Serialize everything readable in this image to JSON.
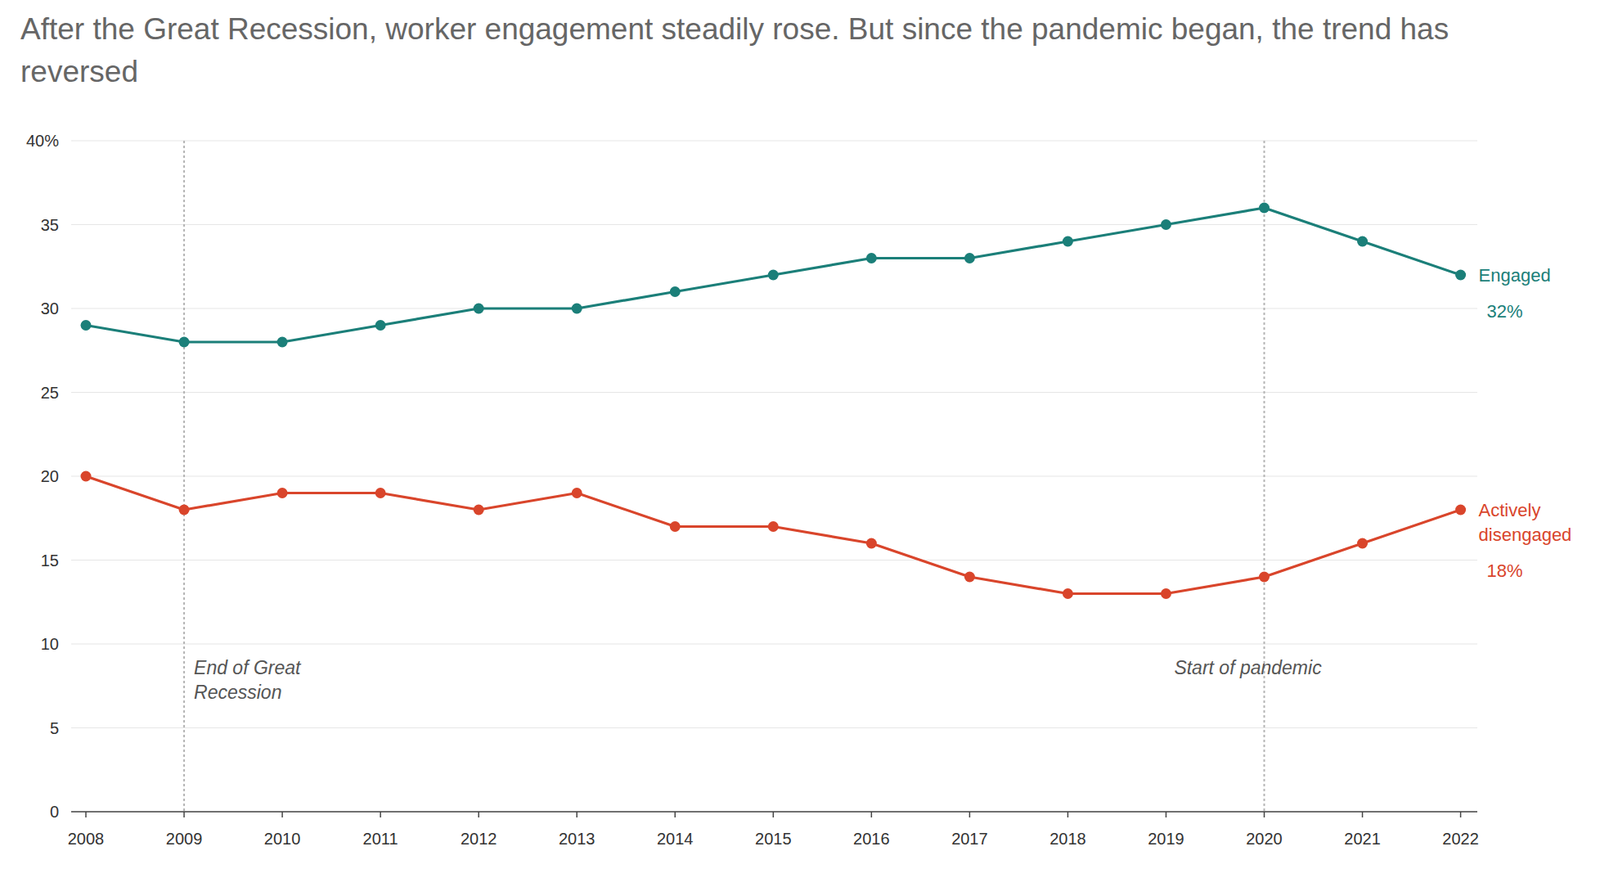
{
  "chart_data": {
    "type": "line",
    "title": "After the Great Recession, worker engagement steadily rose. But since the pandemic began, the trend has reversed",
    "x": [
      2008,
      2009,
      2010,
      2011,
      2012,
      2013,
      2014,
      2015,
      2016,
      2017,
      2018,
      2019,
      2020,
      2021,
      2022
    ],
    "series": [
      {
        "name": "Engaged",
        "color": "#1b7f79",
        "marker": "circle",
        "values": [
          29,
          28,
          28,
          29,
          30,
          30,
          31,
          32,
          33,
          33,
          34,
          35,
          36,
          34,
          32
        ],
        "value_labels": [
          null,
          null,
          null,
          null,
          null,
          null,
          null,
          null,
          null,
          null,
          null,
          null,
          null,
          null,
          "32%"
        ]
      },
      {
        "name": "Actively disengaged",
        "color": "#d9452b",
        "marker": "circle",
        "values": [
          20,
          18,
          19,
          19,
          18,
          19,
          17,
          17,
          16,
          14,
          13,
          13,
          14,
          16,
          18
        ],
        "value_labels": [
          null,
          null,
          null,
          null,
          null,
          null,
          null,
          null,
          null,
          null,
          null,
          null,
          null,
          null,
          "18%"
        ]
      }
    ],
    "xlim": [
      2007.85,
      2022.17
    ],
    "xticks": [
      2008,
      2009,
      2010,
      2011,
      2012,
      2013,
      2014,
      2015,
      2016,
      2017,
      2018,
      2019,
      2020,
      2021,
      2022
    ],
    "ylim": [
      0,
      40
    ],
    "yticks": [
      0,
      5,
      10,
      15,
      20,
      25,
      30,
      35,
      {
        "value": 40,
        "label": "40%"
      }
    ],
    "grid": true,
    "annotations": [
      {
        "x": 2009,
        "text": "End of Great\nRecession"
      },
      {
        "x": 2020,
        "text": "Start of pandemic"
      }
    ]
  }
}
